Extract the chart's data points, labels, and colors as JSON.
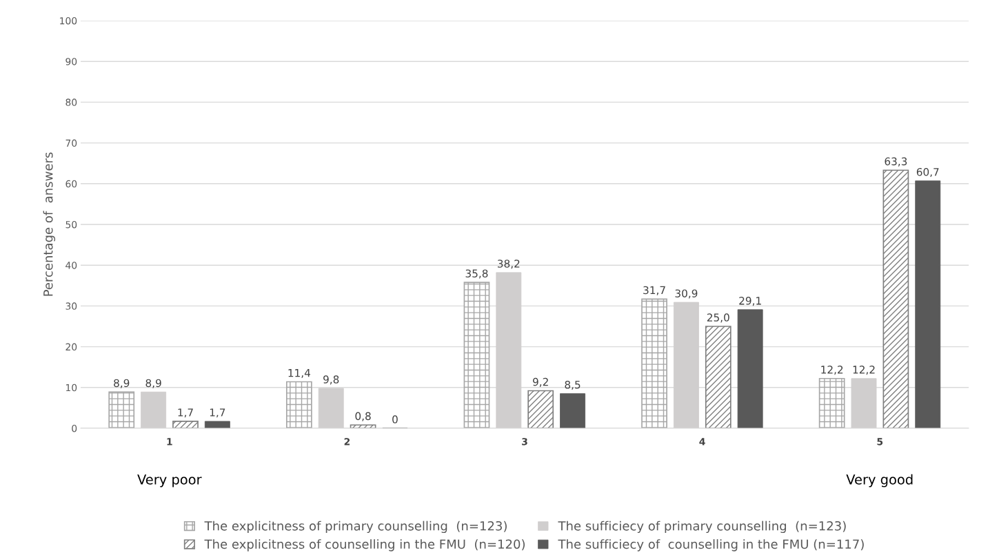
{
  "chart_data": {
    "type": "bar",
    "ylabel": "Percentage of  answers",
    "categories": [
      "1",
      "2",
      "3",
      "4",
      "5"
    ],
    "series": [
      {
        "name": "The explicitness of primary counselling  (n=123)",
        "color": "#a6a6a6",
        "values": [
          8.9,
          11.4,
          35.8,
          31.7,
          12.2
        ],
        "value_labels": [
          "8,9",
          "11,4",
          "35,8",
          "31,7",
          "12,2"
        ]
      },
      {
        "name": "The sufficiecy of primary counselling  (n=123)",
        "color": "#d0cece",
        "values": [
          8.9,
          9.8,
          38.2,
          30.9,
          12.2
        ],
        "value_labels": [
          "8,9",
          "9,8",
          "38,2",
          "30,9",
          "12,2"
        ]
      },
      {
        "name": "The explicitness of counselling in the FMU  (n=120)",
        "color": "#7f7f7f",
        "values": [
          1.7,
          0.8,
          9.2,
          25.0,
          63.3
        ],
        "value_labels": [
          "1,7",
          "0,8",
          "9,2",
          "25,0",
          "63,3"
        ]
      },
      {
        "name": "The sufficiecy of  counselling in the FMU (n=117)",
        "color": "#595959",
        "values": [
          1.7,
          0,
          8.5,
          29.1,
          60.7
        ],
        "value_labels": [
          "1,7",
          "0",
          "8,5",
          "29,1",
          "60,7"
        ]
      }
    ],
    "ylim": [
      0,
      100
    ],
    "yticks": [
      0,
      10,
      20,
      30,
      40,
      50,
      60,
      70,
      80,
      90,
      100
    ],
    "grid": "y",
    "legend": "bottom",
    "annotations": [
      "Very poor",
      "Very good"
    ]
  }
}
